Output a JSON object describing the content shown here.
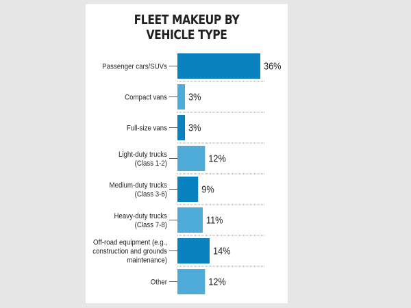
{
  "chart_data": {
    "type": "bar",
    "orientation": "horizontal",
    "title": "FLEET MAKEUP BY VEHICLE TYPE",
    "title_lines": [
      "FLEET MAKEUP BY",
      "VEHICLE TYPE"
    ],
    "categories": [
      [
        "Passenger cars/SUVs"
      ],
      [
        "Compact vans"
      ],
      [
        "Full-size vans"
      ],
      [
        "Light-duty trucks",
        "(Class 1-2)"
      ],
      [
        "Medium-duty trucks",
        "(Class 3-6)"
      ],
      [
        "Heavy-duty trucks",
        "(Class 7-8)"
      ],
      [
        "Off-road equipment (e.g.,",
        "construction and grounds",
        "maintenance)"
      ],
      [
        "Other"
      ]
    ],
    "values": [
      36,
      3,
      3,
      12,
      9,
      11,
      14,
      12
    ],
    "value_labels": [
      "36%",
      "3%",
      "3%",
      "12%",
      "9%",
      "11%",
      "14%",
      "12%"
    ],
    "unit": "%",
    "xlim": [
      0,
      36
    ],
    "grid": false,
    "xlabel": "",
    "ylabel": "",
    "colors": [
      "#0a82c0",
      "#4fabd7",
      "#0a82c0",
      "#4fabd7",
      "#0a82c0",
      "#4fabd7",
      "#0a82c0",
      "#4fabd7"
    ]
  }
}
